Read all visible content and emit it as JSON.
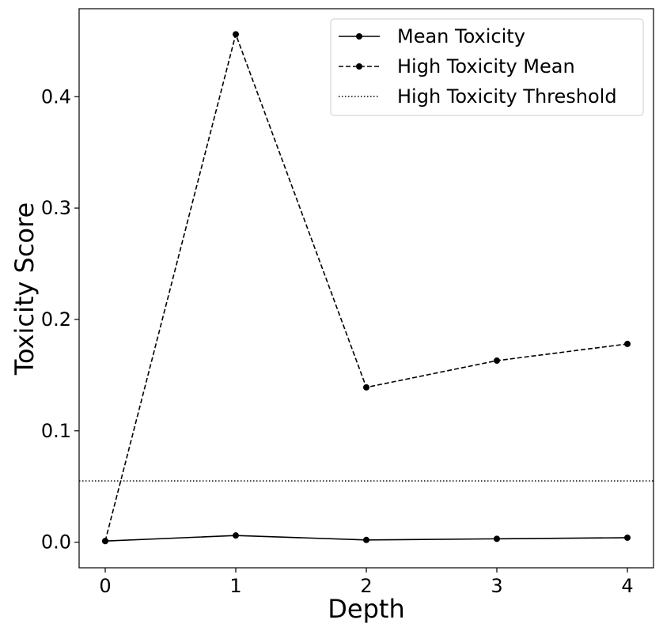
{
  "chart_data": {
    "type": "line",
    "xlabel": "Depth",
    "ylabel": "Toxicity Score",
    "x": [
      0,
      1,
      2,
      3,
      4
    ],
    "xlim": [
      -0.2,
      4.2
    ],
    "ylim": [
      -0.023,
      0.479
    ],
    "xticks": [
      "0",
      "1",
      "2",
      "3",
      "4"
    ],
    "yticks": [
      "0.0",
      "0.1",
      "0.2",
      "0.3",
      "0.4"
    ],
    "ytick_values": [
      0.0,
      0.1,
      0.2,
      0.3,
      0.4
    ],
    "grid": false,
    "legend_position": "top-right",
    "series": [
      {
        "name": "Mean Toxicity",
        "style": "solid",
        "marker": "circle",
        "color": "#000000",
        "values": [
          0.001,
          0.006,
          0.002,
          0.003,
          0.004
        ]
      },
      {
        "name": "High Toxicity Mean",
        "style": "dashed",
        "marker": "circle",
        "color": "#000000",
        "values": [
          0.001,
          0.456,
          0.139,
          0.163,
          0.178
        ]
      }
    ],
    "reference_lines": [
      {
        "name": "High Toxicity Threshold",
        "style": "dotted",
        "color": "#000000",
        "y": 0.055
      }
    ]
  }
}
